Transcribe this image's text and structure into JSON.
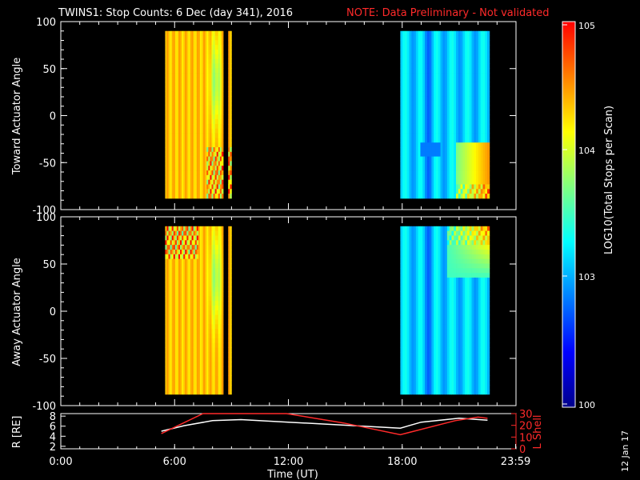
{
  "header": {
    "title": "TWINS1: Stop Counts:  6 Dec (day 341), 2016",
    "note": "NOTE: Data Preliminary - Not validated"
  },
  "side_date": "12 Jan 17",
  "colorbar": {
    "label": "LOG10(Total Stops per Scan)",
    "scale": "log",
    "range": [
      100,
      100000
    ],
    "tick_labels": [
      "10^5",
      "10^4",
      "10^3",
      "100"
    ],
    "colormap": [
      "#00008b",
      "#0000ff",
      "#0080ff",
      "#00ffff",
      "#80ff80",
      "#ffff00",
      "#ff8000",
      "#ff0000"
    ]
  },
  "chart_data": [
    {
      "type": "heatmap",
      "ylabel": "Toward Actuator Angle",
      "x_axis": "time_hours",
      "xlim": [
        0,
        24
      ],
      "ylim": [
        -100,
        100
      ],
      "y_ticks": [
        "100",
        "50",
        "0",
        "-50",
        "-100"
      ],
      "data_extent": {
        "y": [
          -88,
          90
        ]
      },
      "blocks": [
        {
          "x": [
            5.5,
            9.0
          ],
          "gap": [
            8.6,
            8.8
          ],
          "level": "high",
          "dominant": "orange-red"
        },
        {
          "x": [
            17.9,
            22.6
          ],
          "level": "low",
          "dominant": "cyan-blue"
        }
      ]
    },
    {
      "type": "heatmap",
      "ylabel": "Away Actuator Angle",
      "x_axis": "time_hours",
      "xlim": [
        0,
        24
      ],
      "ylim": [
        -100,
        100
      ],
      "y_ticks": [
        "100",
        "50",
        "0",
        "-50",
        "-100"
      ],
      "data_extent": {
        "y": [
          -88,
          90
        ]
      },
      "blocks": [
        {
          "x": [
            5.5,
            9.0
          ],
          "gap": [
            8.6,
            8.8
          ],
          "level": "high",
          "dominant": "orange-red"
        },
        {
          "x": [
            17.9,
            22.6
          ],
          "level": "low",
          "dominant": "cyan-blue"
        }
      ]
    },
    {
      "type": "line",
      "xlabel": "Time (UT)",
      "x_ticks": [
        "0:00",
        "6:00",
        "12:00",
        "18:00",
        "23:59"
      ],
      "xlim": [
        0,
        24
      ],
      "left_axis": {
        "label": "R [RE]",
        "ylim": [
          1.5,
          8.5
        ],
        "ticks": [
          "8",
          "6",
          "4",
          "2"
        ]
      },
      "right_axis": {
        "label": "L Shell",
        "ylim": [
          0,
          30
        ],
        "ticks": [
          "30",
          "20",
          "10",
          "0"
        ],
        "color": "#ff2a2a"
      },
      "series": [
        {
          "axis": "left",
          "color": "#ffffff",
          "x": [
            5.3,
            6.5,
            8.0,
            9.5,
            12,
            15,
            17.9,
            19.0,
            21.0,
            22.5
          ],
          "y": [
            5.0,
            6.1,
            7.1,
            7.3,
            6.8,
            6.2,
            5.6,
            6.8,
            7.6,
            7.2
          ]
        },
        {
          "axis": "right",
          "color": "#ff2a2a",
          "x": [
            5.3,
            7.5,
            11.9,
            14.9,
            17.9,
            20.8,
            22.0,
            22.5
          ],
          "y": [
            13,
            30,
            30,
            22,
            12,
            24,
            27,
            26
          ]
        }
      ]
    }
  ],
  "labels": {
    "panel1_ylabel": "Toward Actuator Angle",
    "panel2_ylabel": "Away Actuator Angle",
    "panel3_ylabel_left": "R [RE]",
    "panel3_ylabel_right": "L Shell",
    "xlabel": "Time (UT)"
  }
}
